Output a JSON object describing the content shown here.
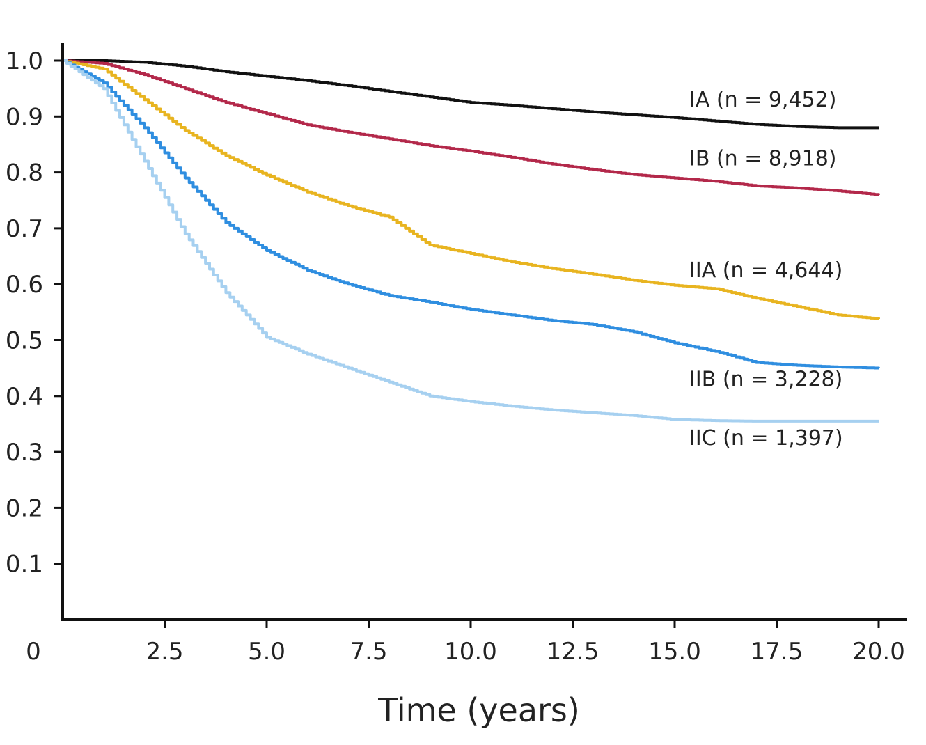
{
  "chart_data": {
    "type": "line",
    "step": true,
    "xlabel": "Time (years)",
    "ylabel": "",
    "xlim": [
      0,
      20
    ],
    "ylim": [
      0,
      1
    ],
    "x_ticks": [
      {
        "value": 0,
        "label": "0"
      },
      {
        "value": 2.5,
        "label": "2.5"
      },
      {
        "value": 5,
        "label": "5.0"
      },
      {
        "value": 7.5,
        "label": "7.5"
      },
      {
        "value": 10,
        "label": "10.0"
      },
      {
        "value": 12.5,
        "label": "12.5"
      },
      {
        "value": 15,
        "label": "15.0"
      },
      {
        "value": 17.5,
        "label": "17.5"
      },
      {
        "value": 20,
        "label": "20.0"
      }
    ],
    "y_ticks": [
      {
        "value": 0.1,
        "label": "0.1"
      },
      {
        "value": 0.2,
        "label": "0.2"
      },
      {
        "value": 0.3,
        "label": "0.3"
      },
      {
        "value": 0.4,
        "label": "0.4"
      },
      {
        "value": 0.5,
        "label": "0.5"
      },
      {
        "value": 0.6,
        "label": "0.6"
      },
      {
        "value": 0.7,
        "label": "0.7"
      },
      {
        "value": 0.8,
        "label": "0.8"
      },
      {
        "value": 0.9,
        "label": "0.9"
      },
      {
        "value": 1.0,
        "label": "1.0"
      }
    ],
    "grid": false,
    "legend": "inline-right",
    "series": [
      {
        "name": "IA (n = 9,452)",
        "color": "#111111",
        "label_y": 0.93,
        "points": [
          [
            0,
            1.0
          ],
          [
            1,
            1.0
          ],
          [
            2,
            0.997
          ],
          [
            3,
            0.99
          ],
          [
            4,
            0.98
          ],
          [
            5,
            0.972
          ],
          [
            6,
            0.964
          ],
          [
            7,
            0.955
          ],
          [
            8,
            0.945
          ],
          [
            9,
            0.935
          ],
          [
            10,
            0.925
          ],
          [
            11,
            0.92
          ],
          [
            12,
            0.914
          ],
          [
            13,
            0.908
          ],
          [
            14,
            0.903
          ],
          [
            15,
            0.898
          ],
          [
            16,
            0.892
          ],
          [
            17,
            0.886
          ],
          [
            18,
            0.882
          ],
          [
            19,
            0.88
          ],
          [
            20,
            0.88
          ]
        ]
      },
      {
        "name": "IB (n = 8,918)",
        "color": "#b3284a",
        "label_y": 0.825,
        "points": [
          [
            0,
            1.0
          ],
          [
            1,
            0.995
          ],
          [
            2,
            0.975
          ],
          [
            3,
            0.95
          ],
          [
            4,
            0.925
          ],
          [
            5,
            0.905
          ],
          [
            6,
            0.885
          ],
          [
            7,
            0.872
          ],
          [
            8,
            0.86
          ],
          [
            9,
            0.848
          ],
          [
            10,
            0.838
          ],
          [
            11,
            0.827
          ],
          [
            12,
            0.815
          ],
          [
            13,
            0.805
          ],
          [
            14,
            0.796
          ],
          [
            15,
            0.79
          ],
          [
            16,
            0.784
          ],
          [
            17,
            0.776
          ],
          [
            18,
            0.772
          ],
          [
            19,
            0.767
          ],
          [
            20,
            0.76
          ]
        ]
      },
      {
        "name": "IIA (n = 4,644)",
        "color": "#e8b420",
        "label_y": 0.625,
        "points": [
          [
            0,
            1.0
          ],
          [
            1,
            0.985
          ],
          [
            2,
            0.93
          ],
          [
            3,
            0.875
          ],
          [
            4,
            0.83
          ],
          [
            5,
            0.795
          ],
          [
            6,
            0.765
          ],
          [
            7,
            0.74
          ],
          [
            8,
            0.72
          ],
          [
            9,
            0.67
          ],
          [
            10,
            0.655
          ],
          [
            11,
            0.64
          ],
          [
            12,
            0.628
          ],
          [
            13,
            0.618
          ],
          [
            14,
            0.607
          ],
          [
            15,
            0.598
          ],
          [
            16,
            0.592
          ],
          [
            17,
            0.575
          ],
          [
            18,
            0.56
          ],
          [
            19,
            0.545
          ],
          [
            20,
            0.538
          ]
        ]
      },
      {
        "name": "IIB (n = 3,228)",
        "color": "#2f8ee0",
        "label_y": 0.43,
        "points": [
          [
            0,
            1.0
          ],
          [
            1,
            0.96
          ],
          [
            2,
            0.88
          ],
          [
            3,
            0.79
          ],
          [
            4,
            0.71
          ],
          [
            5,
            0.66
          ],
          [
            6,
            0.625
          ],
          [
            7,
            0.6
          ],
          [
            8,
            0.58
          ],
          [
            9,
            0.568
          ],
          [
            10,
            0.555
          ],
          [
            11,
            0.545
          ],
          [
            12,
            0.535
          ],
          [
            13,
            0.528
          ],
          [
            14,
            0.515
          ],
          [
            15,
            0.495
          ],
          [
            16,
            0.48
          ],
          [
            17,
            0.46
          ],
          [
            18,
            0.455
          ],
          [
            19,
            0.452
          ],
          [
            20,
            0.45
          ]
        ]
      },
      {
        "name": "IIC (n = 1,397)",
        "color": "#a6d0f0",
        "label_y": 0.325,
        "points": [
          [
            0,
            1.0
          ],
          [
            1,
            0.95
          ],
          [
            2,
            0.82
          ],
          [
            3,
            0.69
          ],
          [
            4,
            0.585
          ],
          [
            5,
            0.505
          ],
          [
            6,
            0.475
          ],
          [
            7,
            0.45
          ],
          [
            8,
            0.425
          ],
          [
            9,
            0.4
          ],
          [
            10,
            0.39
          ],
          [
            11,
            0.382
          ],
          [
            12,
            0.375
          ],
          [
            13,
            0.37
          ],
          [
            14,
            0.365
          ],
          [
            15,
            0.358
          ],
          [
            16,
            0.356
          ],
          [
            17,
            0.355
          ],
          [
            18,
            0.355
          ],
          [
            19,
            0.355
          ],
          [
            20,
            0.355
          ]
        ]
      }
    ]
  }
}
